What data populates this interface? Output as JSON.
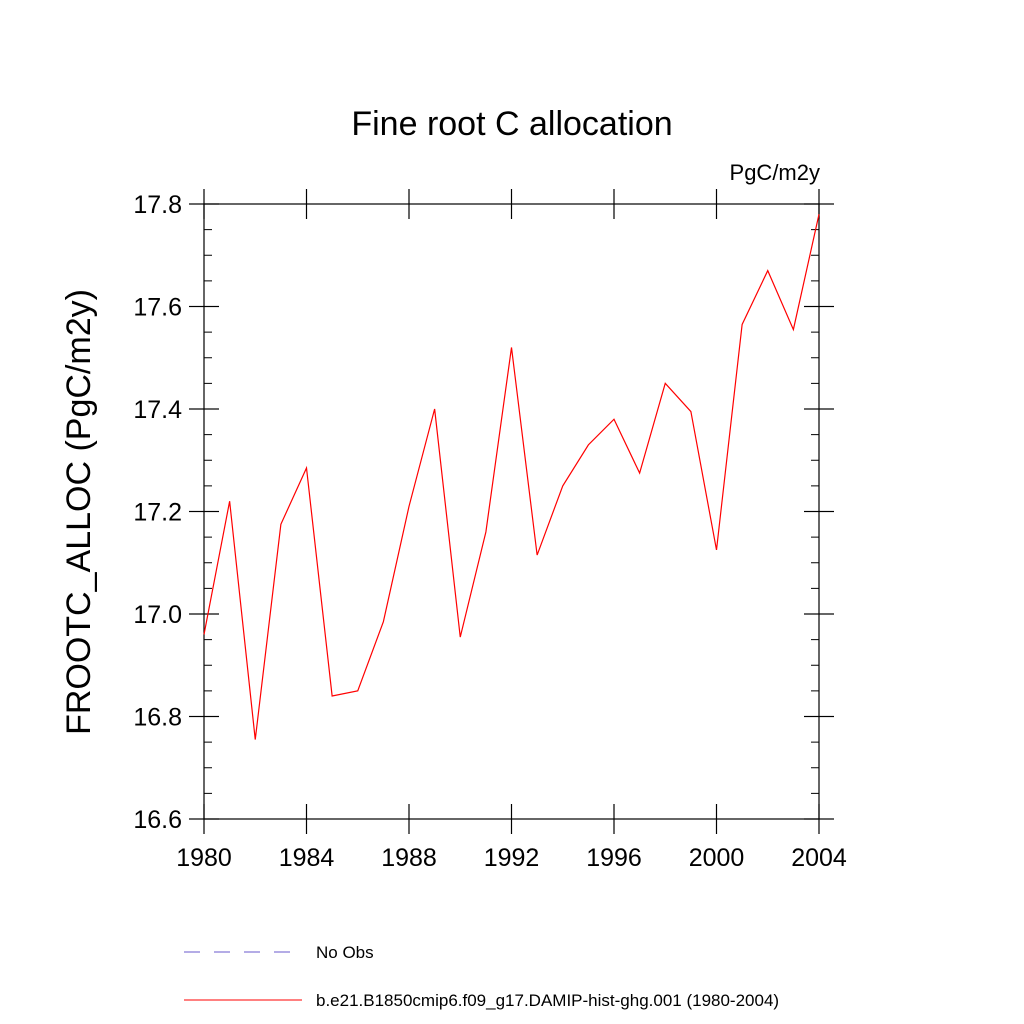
{
  "chart_data": {
    "type": "line",
    "title": "Fine root C allocation",
    "units": "PgC/m2y",
    "xlabel": "",
    "ylabel": "FROOTC_ALLOC  (PgC/m2y)",
    "xlim": [
      1980,
      2004
    ],
    "ylim": [
      16.6,
      17.8
    ],
    "x_ticks": [
      "1980",
      "1984",
      "1988",
      "1992",
      "1996",
      "2000",
      "2004"
    ],
    "y_ticks": [
      "16.6",
      "16.8",
      "17.0",
      "17.2",
      "17.4",
      "17.6",
      "17.8"
    ],
    "grid": false,
    "legend_position": "bottom",
    "series": [
      {
        "name": "b.e21.B1850cmip6.f09_g17.DAMIP-hist-ghg.001 (1980-2004)",
        "color": "#ff0000",
        "style": "solid",
        "x": [
          1980,
          1981,
          1982,
          1983,
          1984,
          1985,
          1986,
          1987,
          1988,
          1989,
          1990,
          1991,
          1992,
          1993,
          1994,
          1995,
          1996,
          1997,
          1998,
          1999,
          2000,
          2001,
          2002,
          2003,
          2004
        ],
        "y": [
          16.96,
          17.22,
          16.755,
          17.175,
          17.285,
          16.84,
          16.85,
          16.985,
          17.21,
          17.4,
          16.955,
          17.16,
          17.52,
          17.115,
          17.25,
          17.33,
          17.38,
          17.275,
          17.45,
          17.395,
          17.125,
          17.565,
          17.67,
          17.555,
          17.78
        ]
      }
    ],
    "legend": [
      {
        "label": "No Obs",
        "color": "#6a5acd",
        "style": "dashed"
      },
      {
        "label": "b.e21.B1850cmip6.f09_g17.DAMIP-hist-ghg.001 (1980-2004)",
        "color": "#ff0000",
        "style": "solid"
      }
    ]
  }
}
